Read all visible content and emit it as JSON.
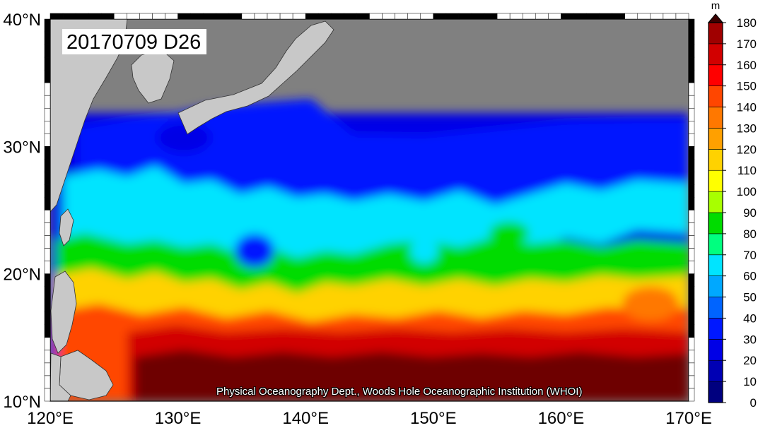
{
  "stamp": "20170709 D26",
  "credit": "Physical Oceanography Dept., Woods Hole Oceanographic Institution (WHOI)",
  "axes": {
    "lon_ticks": [
      {
        "value": 120,
        "label": "120°E"
      },
      {
        "value": 130,
        "label": "130°E"
      },
      {
        "value": 140,
        "label": "140°E"
      },
      {
        "value": 150,
        "label": "150°E"
      },
      {
        "value": 160,
        "label": "160°E"
      },
      {
        "value": 170,
        "label": "170°E"
      }
    ],
    "lat_ticks": [
      {
        "value": 10,
        "label": "10°N"
      },
      {
        "value": 20,
        "label": "20°N"
      },
      {
        "value": 30,
        "label": "30°N"
      },
      {
        "value": 40,
        "label": "40°N"
      }
    ],
    "lon_range": [
      120,
      170
    ],
    "lat_range": [
      10,
      40
    ]
  },
  "colorbar": {
    "unit": "m",
    "levels": [
      0,
      10,
      20,
      30,
      40,
      50,
      60,
      70,
      80,
      90,
      100,
      110,
      120,
      130,
      140,
      150,
      160,
      170,
      180
    ],
    "colors": [
      "#00007f",
      "#0000b4",
      "#0000e6",
      "#0018ff",
      "#0064ff",
      "#00a8ff",
      "#00e4ff",
      "#00ff7f",
      "#00dc00",
      "#a8ff00",
      "#ffff00",
      "#ffd200",
      "#ffa000",
      "#ff7800",
      "#ff4600",
      "#ff0000",
      "#d20000",
      "#a00000",
      "#6e0000",
      "#3c0000"
    ]
  },
  "colors": {
    "land": "#c8c8c8",
    "masked": "#808080"
  }
}
